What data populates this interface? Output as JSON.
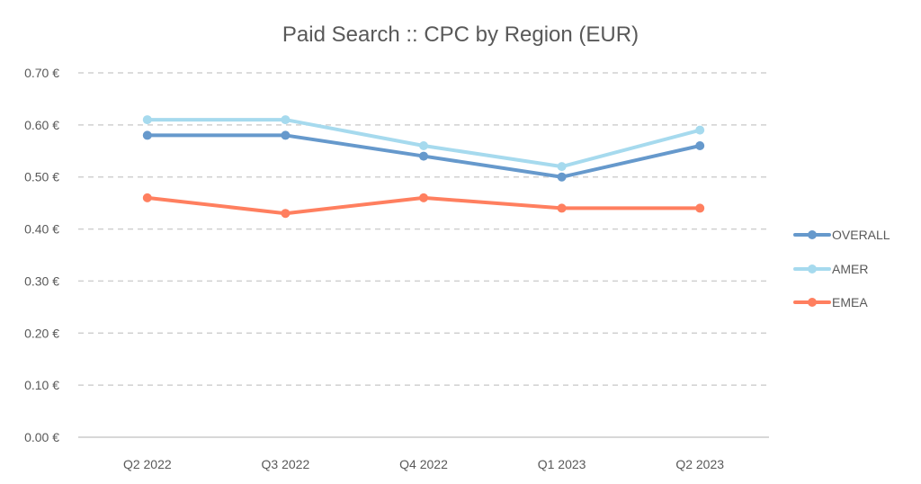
{
  "chart_data": {
    "type": "line",
    "title": "Paid Search :: CPC by Region (EUR)",
    "xlabel": "",
    "ylabel": "",
    "categories": [
      "Q2 2022",
      "Q3 2022",
      "Q4 2022",
      "Q1 2023",
      "Q2 2023"
    ],
    "series": [
      {
        "name": "OVERALL",
        "color": "#6699CC",
        "values": [
          0.58,
          0.58,
          0.54,
          0.5,
          0.56
        ]
      },
      {
        "name": "AMER",
        "color": "#A6DAEE",
        "values": [
          0.61,
          0.61,
          0.56,
          0.52,
          0.59
        ]
      },
      {
        "name": "EMEA",
        "color": "#FF7F5F",
        "values": [
          0.46,
          0.43,
          0.46,
          0.44,
          0.44
        ]
      }
    ],
    "ylim": [
      0,
      0.7
    ],
    "yticks": [
      0.0,
      0.1,
      0.2,
      0.3,
      0.4,
      0.5,
      0.6,
      0.7
    ],
    "ytick_labels": [
      "0.00 €",
      "0.10 €",
      "0.20 €",
      "0.30 €",
      "0.40 €",
      "0.50 €",
      "0.60 €",
      "0.70 €"
    ],
    "grid": true,
    "legend_position": "right"
  }
}
